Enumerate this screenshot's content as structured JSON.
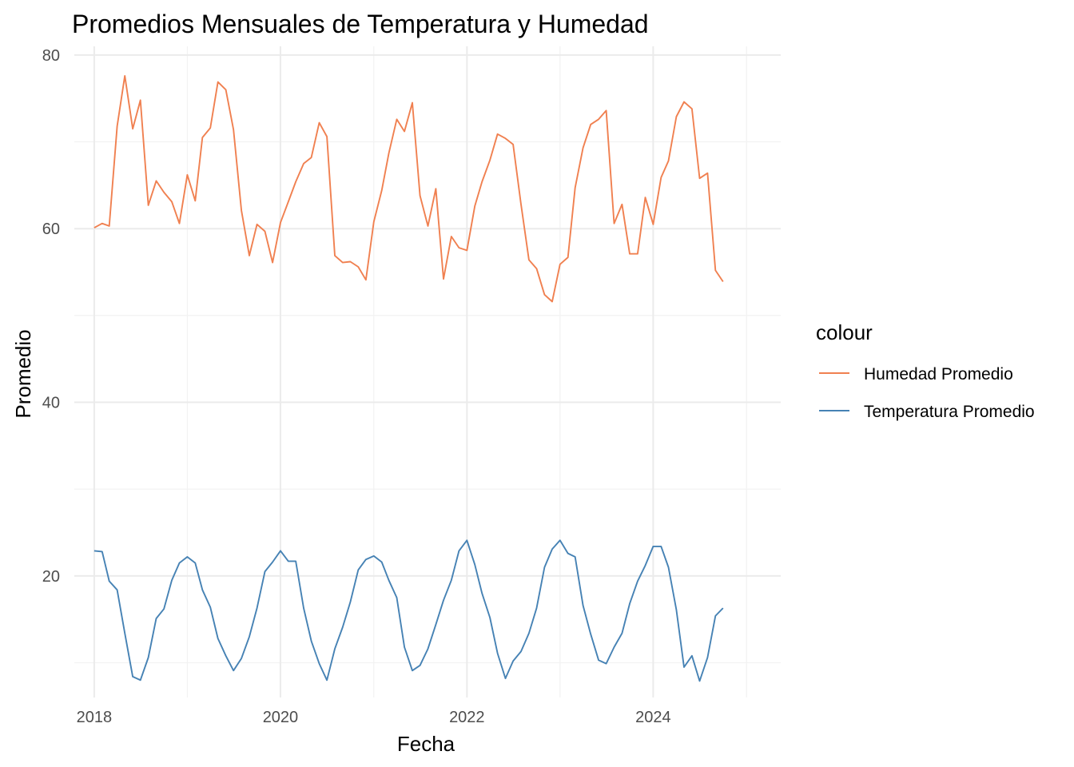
{
  "chart_data": {
    "type": "line",
    "title": "Promedios Mensuales de Temperatura y Humedad",
    "xlabel": "Fecha",
    "ylabel": "Promedio",
    "xlim": [
      "2017-10-15",
      "2025-05-15"
    ],
    "ylim": [
      6,
      81
    ],
    "x_ticks": [
      "2018",
      "2020",
      "2022",
      "2024"
    ],
    "y_ticks": [
      20,
      40,
      60,
      80
    ],
    "grid": true,
    "legend": {
      "title": "colour",
      "position": "right",
      "entries": [
        "Humedad Promedio",
        "Temperatura Promedio"
      ]
    },
    "x": [
      "2018-01",
      "2018-02",
      "2018-03",
      "2018-04",
      "2018-05",
      "2018-06",
      "2018-07",
      "2018-08",
      "2018-09",
      "2018-10",
      "2018-11",
      "2018-12",
      "2019-01",
      "2019-02",
      "2019-03",
      "2019-04",
      "2019-05",
      "2019-06",
      "2019-07",
      "2019-08",
      "2019-09",
      "2019-10",
      "2019-11",
      "2019-12",
      "2020-01",
      "2020-02",
      "2020-03",
      "2020-04",
      "2020-05",
      "2020-06",
      "2020-07",
      "2020-08",
      "2020-09",
      "2020-10",
      "2020-11",
      "2020-12",
      "2021-01",
      "2021-02",
      "2021-03",
      "2021-04",
      "2021-05",
      "2021-06",
      "2021-07",
      "2021-08",
      "2021-09",
      "2021-10",
      "2021-11",
      "2021-12",
      "2022-01",
      "2022-02",
      "2022-03",
      "2022-04",
      "2022-05",
      "2022-06",
      "2022-07",
      "2022-08",
      "2022-09",
      "2022-10",
      "2022-11",
      "2022-12",
      "2023-01",
      "2023-02",
      "2023-03",
      "2023-04",
      "2023-05",
      "2023-06",
      "2023-07",
      "2023-08",
      "2023-09",
      "2023-10",
      "2023-11",
      "2023-12",
      "2024-01",
      "2024-02",
      "2024-03",
      "2024-04",
      "2024-05",
      "2024-06",
      "2024-07",
      "2024-08",
      "2024-09",
      "2024-10"
    ],
    "series": [
      {
        "name": "Humedad Promedio",
        "color": "#f08050",
        "values": [
          60.1,
          60.6,
          60.3,
          71.8,
          77.6,
          71.5,
          74.8,
          62.7,
          65.5,
          64.2,
          63.1,
          60.6,
          66.2,
          63.2,
          70.5,
          71.6,
          76.9,
          76.0,
          71.4,
          62.1,
          56.9,
          60.5,
          59.7,
          56.1,
          60.7,
          63.1,
          65.4,
          67.5,
          68.2,
          72.2,
          70.6,
          56.9,
          56.1,
          56.2,
          55.6,
          54.1,
          60.8,
          64.4,
          68.7,
          72.6,
          71.2,
          74.5,
          63.8,
          60.3,
          64.6,
          54.2,
          59.1,
          57.8,
          57.5,
          62.6,
          65.4,
          67.9,
          70.9,
          70.4,
          69.7,
          62.8,
          56.4,
          55.4,
          52.4,
          51.6,
          55.9,
          56.7,
          64.7,
          69.3,
          72.0,
          72.6,
          73.6,
          60.6,
          62.8,
          57.1,
          57.1,
          63.6,
          60.5,
          65.9,
          67.8,
          72.9,
          74.6,
          73.8,
          65.8,
          66.4,
          55.2,
          53.9
        ]
      },
      {
        "name": "Temperatura Promedio",
        "color": "#4682b4",
        "values": [
          22.9,
          22.8,
          19.4,
          18.4,
          13.4,
          8.4,
          8.0,
          10.6,
          15.1,
          16.2,
          19.5,
          21.5,
          22.2,
          21.5,
          18.4,
          16.4,
          12.8,
          10.8,
          9.1,
          10.5,
          13.0,
          16.3,
          20.5,
          21.6,
          22.9,
          21.7,
          21.7,
          16.3,
          12.5,
          9.9,
          8.0,
          11.6,
          14.1,
          17.0,
          20.7,
          21.9,
          22.3,
          21.6,
          19.5,
          17.5,
          11.8,
          9.1,
          9.7,
          11.6,
          14.4,
          17.2,
          19.5,
          22.9,
          24.1,
          21.3,
          18.0,
          15.2,
          11.1,
          8.2,
          10.2,
          11.3,
          13.4,
          16.3,
          21.0,
          23.1,
          24.1,
          22.6,
          22.2,
          16.6,
          13.3,
          10.3,
          9.9,
          11.8,
          13.4,
          16.8,
          19.4,
          21.2,
          23.4,
          23.4,
          21.0,
          16.1,
          9.5,
          10.8,
          7.9,
          10.6,
          15.4,
          16.3
        ]
      }
    ]
  }
}
